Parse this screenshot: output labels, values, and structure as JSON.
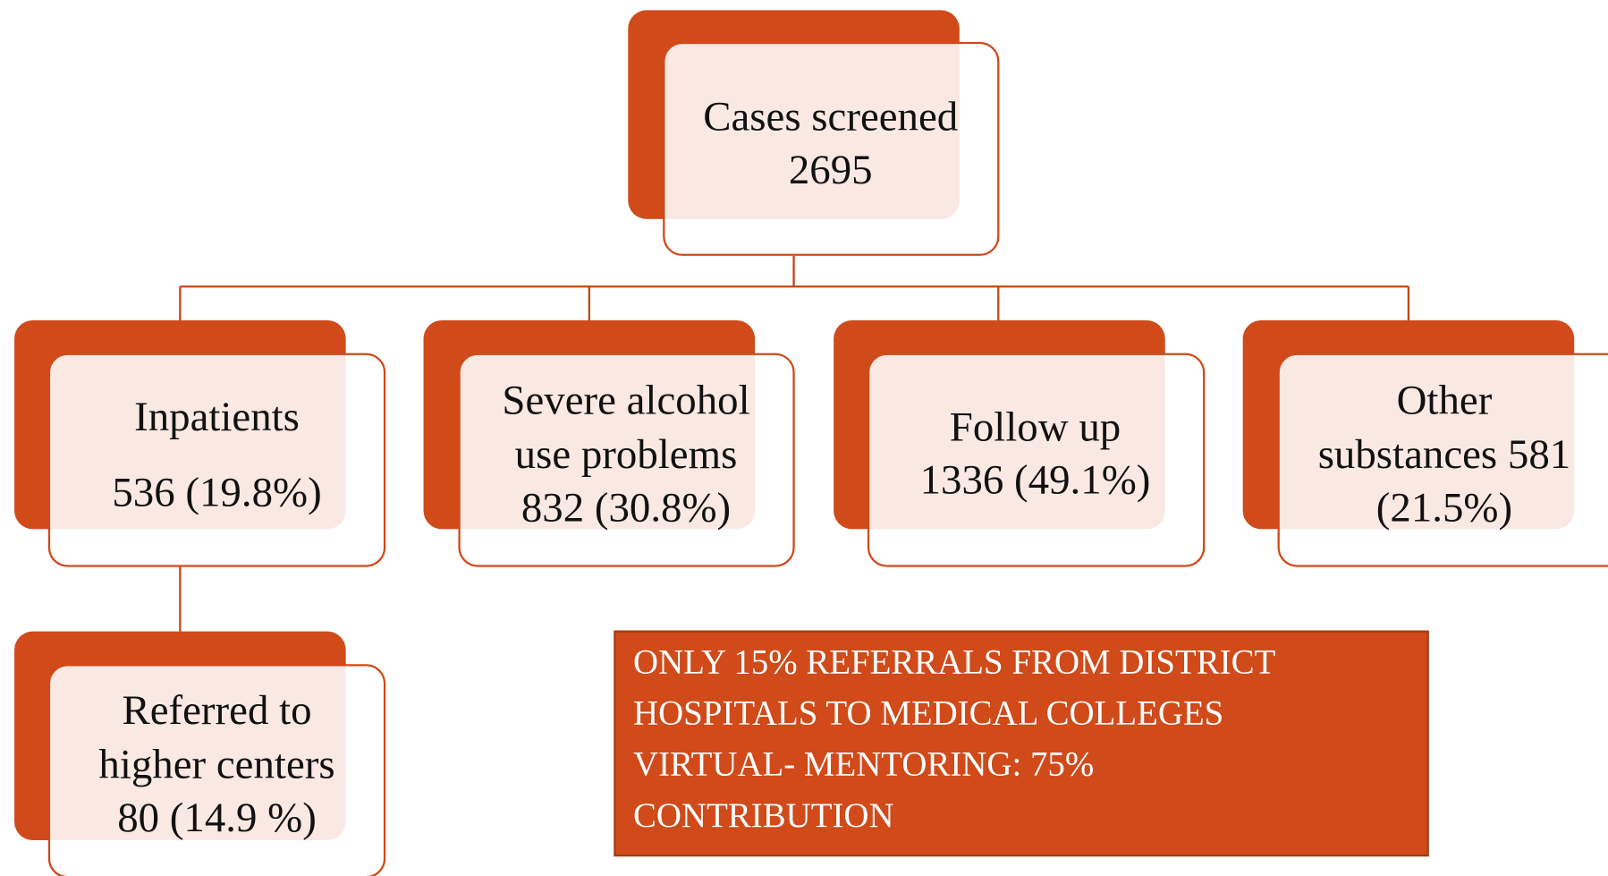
{
  "nodes": [
    {
      "lines": [
        "Cases screened",
        "2695"
      ]
    },
    {
      "lines": [
        "Inpatients",
        "536 (19.8%)"
      ]
    },
    {
      "lines": [
        "Severe alcohol",
        "use problems",
        "832 (30.8%)"
      ]
    },
    {
      "lines": [
        "Follow up",
        "1336 (49.1%)"
      ]
    },
    {
      "lines": [
        "Other",
        "substances 581",
        "(21.5%)"
      ]
    },
    {
      "lines": [
        "Referred to",
        "higher centers",
        "80 (14.9 %)"
      ]
    }
  ],
  "note": {
    "lines": [
      "ONLY 15% REFERRALS FROM DISTRICT",
      "HOSPITALS TO MEDICAL COLLEGES",
      "VIRTUAL- MENTORING: 75%",
      "CONTRIBUTION"
    ]
  }
}
